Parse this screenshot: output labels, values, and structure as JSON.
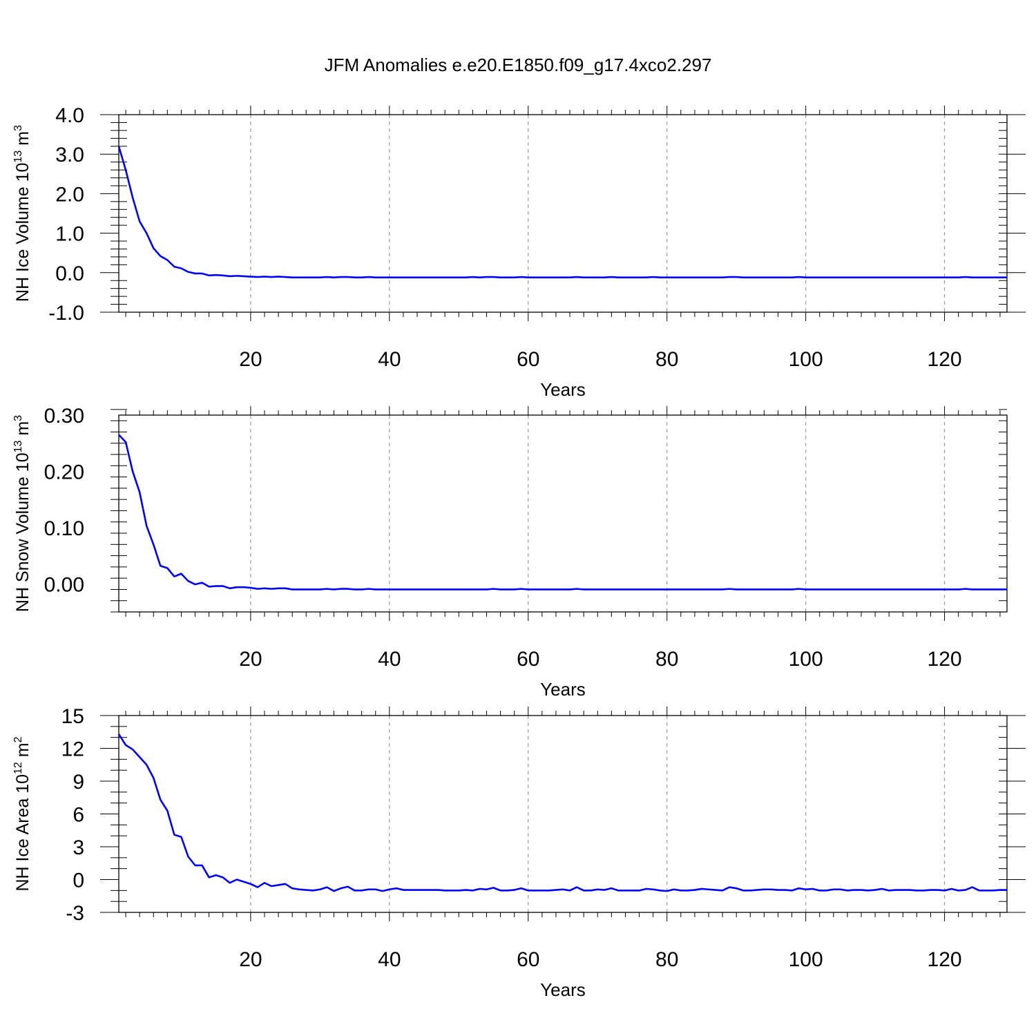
{
  "title": "JFM Anomalies e.e20.E1850.f09_g17.4xco2.297",
  "colors": {
    "line": "#0000ff",
    "axis": "#000000",
    "grid": "#999999"
  },
  "chart_data": [
    {
      "type": "line",
      "name": "ice-volume",
      "ylabel": {
        "base": "NH Ice Volume 10",
        "exp": "13",
        "unit": " m",
        "unit_exp": "3"
      },
      "xlabel": "Years",
      "xlim": [
        1,
        129
      ],
      "ylim": [
        -1.0,
        4.0
      ],
      "xticks": [
        20,
        40,
        60,
        80,
        100,
        120
      ],
      "xtick_labels": [
        "20",
        "40",
        "60",
        "80",
        "100",
        "120"
      ],
      "yticks": [
        -1.0,
        0.0,
        1.0,
        2.0,
        3.0,
        4.0
      ],
      "ytick_labels": [
        "-1.0",
        "0.0",
        "1.0",
        "2.0",
        "3.0",
        "4.0"
      ],
      "y_minor_step": 0.2,
      "grid_x": true,
      "series": [
        {
          "name": "NH Ice Volume",
          "x_start": 1,
          "values": [
            3.2,
            2.6,
            1.9,
            1.3,
            1.0,
            0.62,
            0.42,
            0.32,
            0.15,
            0.11,
            0.02,
            -0.02,
            -0.02,
            -0.07,
            -0.06,
            -0.07,
            -0.09,
            -0.08,
            -0.09,
            -0.1,
            -0.11,
            -0.1,
            -0.11,
            -0.1,
            -0.11,
            -0.12,
            -0.12,
            -0.12,
            -0.12,
            -0.12,
            -0.11,
            -0.12,
            -0.11,
            -0.11,
            -0.12,
            -0.12,
            -0.11,
            -0.12,
            -0.12,
            -0.12,
            -0.12,
            -0.12,
            -0.12,
            -0.12,
            -0.12,
            -0.12,
            -0.12,
            -0.12,
            -0.12,
            -0.12,
            -0.12,
            -0.11,
            -0.12,
            -0.11,
            -0.11,
            -0.12,
            -0.12,
            -0.12,
            -0.11,
            -0.12,
            -0.12,
            -0.12,
            -0.12,
            -0.12,
            -0.12,
            -0.12,
            -0.11,
            -0.12,
            -0.12,
            -0.12,
            -0.12,
            -0.11,
            -0.12,
            -0.12,
            -0.12,
            -0.12,
            -0.12,
            -0.11,
            -0.12,
            -0.12,
            -0.12,
            -0.12,
            -0.12,
            -0.12,
            -0.12,
            -0.12,
            -0.12,
            -0.12,
            -0.11,
            -0.11,
            -0.12,
            -0.12,
            -0.12,
            -0.12,
            -0.12,
            -0.12,
            -0.12,
            -0.12,
            -0.11,
            -0.12,
            -0.12,
            -0.12,
            -0.12,
            -0.12,
            -0.12,
            -0.12,
            -0.12,
            -0.12,
            -0.12,
            -0.12,
            -0.12,
            -0.12,
            -0.12,
            -0.12,
            -0.12,
            -0.12,
            -0.12,
            -0.12,
            -0.12,
            -0.12,
            -0.12,
            -0.12,
            -0.11,
            -0.12,
            -0.12,
            -0.12,
            -0.12,
            -0.12,
            -0.12
          ]
        }
      ]
    },
    {
      "type": "line",
      "name": "snow-volume",
      "ylabel": {
        "base": "NH Snow Volume 10",
        "exp": "13",
        "unit": " m",
        "unit_exp": "3"
      },
      "xlabel": "Years",
      "xlim": [
        1,
        129
      ],
      "ylim": [
        -0.05,
        0.3
      ],
      "xticks": [
        20,
        40,
        60,
        80,
        100,
        120
      ],
      "xtick_labels": [
        "20",
        "40",
        "60",
        "80",
        "100",
        "120"
      ],
      "yticks": [
        0.0,
        0.1,
        0.2,
        0.3
      ],
      "ytick_labels": [
        "0.00",
        "0.10",
        "0.20",
        "0.30"
      ],
      "y_minor_step": 0.02,
      "grid_x": true,
      "series": [
        {
          "name": "NH Snow Volume",
          "x_start": 1,
          "values": [
            0.265,
            0.252,
            0.2,
            0.163,
            0.103,
            0.07,
            0.032,
            0.028,
            0.013,
            0.018,
            0.005,
            -0.001,
            0.002,
            -0.005,
            -0.004,
            -0.004,
            -0.008,
            -0.006,
            -0.006,
            -0.007,
            -0.009,
            -0.008,
            -0.009,
            -0.008,
            -0.008,
            -0.01,
            -0.01,
            -0.01,
            -0.01,
            -0.01,
            -0.009,
            -0.01,
            -0.009,
            -0.009,
            -0.01,
            -0.01,
            -0.009,
            -0.01,
            -0.01,
            -0.01,
            -0.01,
            -0.01,
            -0.01,
            -0.01,
            -0.01,
            -0.01,
            -0.01,
            -0.01,
            -0.01,
            -0.01,
            -0.01,
            -0.01,
            -0.01,
            -0.01,
            -0.009,
            -0.01,
            -0.01,
            -0.01,
            -0.009,
            -0.01,
            -0.01,
            -0.01,
            -0.01,
            -0.01,
            -0.01,
            -0.01,
            -0.009,
            -0.01,
            -0.01,
            -0.01,
            -0.01,
            -0.01,
            -0.01,
            -0.01,
            -0.01,
            -0.01,
            -0.01,
            -0.01,
            -0.01,
            -0.01,
            -0.01,
            -0.01,
            -0.01,
            -0.01,
            -0.01,
            -0.01,
            -0.01,
            -0.01,
            -0.009,
            -0.01,
            -0.01,
            -0.01,
            -0.01,
            -0.01,
            -0.01,
            -0.01,
            -0.01,
            -0.01,
            -0.009,
            -0.01,
            -0.01,
            -0.01,
            -0.01,
            -0.01,
            -0.01,
            -0.01,
            -0.01,
            -0.01,
            -0.01,
            -0.01,
            -0.01,
            -0.01,
            -0.01,
            -0.01,
            -0.01,
            -0.01,
            -0.01,
            -0.01,
            -0.01,
            -0.01,
            -0.01,
            -0.01,
            -0.009,
            -0.01,
            -0.01,
            -0.01,
            -0.01,
            -0.01,
            -0.01
          ]
        }
      ]
    },
    {
      "type": "line",
      "name": "ice-area",
      "ylabel": {
        "base": "NH Ice Area 10",
        "exp": "12",
        "unit": " m",
        "unit_exp": "2"
      },
      "xlabel": "Years",
      "xlim": [
        1,
        129
      ],
      "ylim": [
        -3,
        15
      ],
      "xticks": [
        20,
        40,
        60,
        80,
        100,
        120
      ],
      "xtick_labels": [
        "20",
        "40",
        "60",
        "80",
        "100",
        "120"
      ],
      "yticks": [
        -3,
        0,
        3,
        6,
        9,
        12,
        15
      ],
      "ytick_labels": [
        "-3",
        "0",
        "3",
        "6",
        "9",
        "12",
        "15"
      ],
      "y_minor_step": 1,
      "grid_x": true,
      "series": [
        {
          "name": "NH Ice Area",
          "x_start": 1,
          "values": [
            13.3,
            12.3,
            11.9,
            11.2,
            10.5,
            9.3,
            7.3,
            6.3,
            4.1,
            3.9,
            2.1,
            1.3,
            1.3,
            0.2,
            0.4,
            0.2,
            -0.3,
            0.0,
            -0.2,
            -0.4,
            -0.7,
            -0.3,
            -0.6,
            -0.5,
            -0.4,
            -0.8,
            -0.9,
            -0.95,
            -1.0,
            -0.9,
            -0.7,
            -1.05,
            -0.8,
            -0.65,
            -1.0,
            -1.0,
            -0.9,
            -0.9,
            -1.05,
            -0.9,
            -0.8,
            -0.95,
            -0.95,
            -0.95,
            -0.95,
            -0.95,
            -0.95,
            -1.0,
            -1.0,
            -1.0,
            -0.95,
            -1.0,
            -0.85,
            -0.9,
            -0.75,
            -1.0,
            -1.0,
            -0.95,
            -0.8,
            -1.0,
            -1.0,
            -1.0,
            -1.0,
            -0.95,
            -0.9,
            -1.0,
            -0.7,
            -1.0,
            -1.0,
            -0.9,
            -0.95,
            -0.8,
            -1.0,
            -1.0,
            -1.0,
            -1.0,
            -0.85,
            -0.9,
            -1.0,
            -1.05,
            -0.9,
            -1.0,
            -1.0,
            -0.95,
            -0.85,
            -0.9,
            -0.95,
            -1.0,
            -0.7,
            -0.8,
            -1.0,
            -1.0,
            -0.95,
            -0.9,
            -0.9,
            -0.95,
            -0.95,
            -1.0,
            -0.8,
            -0.9,
            -0.85,
            -1.0,
            -1.0,
            -0.9,
            -0.9,
            -1.0,
            -0.95,
            -0.95,
            -1.0,
            -0.95,
            -0.85,
            -1.0,
            -0.95,
            -0.95,
            -0.95,
            -1.0,
            -1.0,
            -0.95,
            -0.95,
            -1.0,
            -0.85,
            -1.0,
            -0.95,
            -0.7,
            -1.0,
            -1.0,
            -1.0,
            -0.95,
            -0.95
          ]
        }
      ]
    }
  ]
}
